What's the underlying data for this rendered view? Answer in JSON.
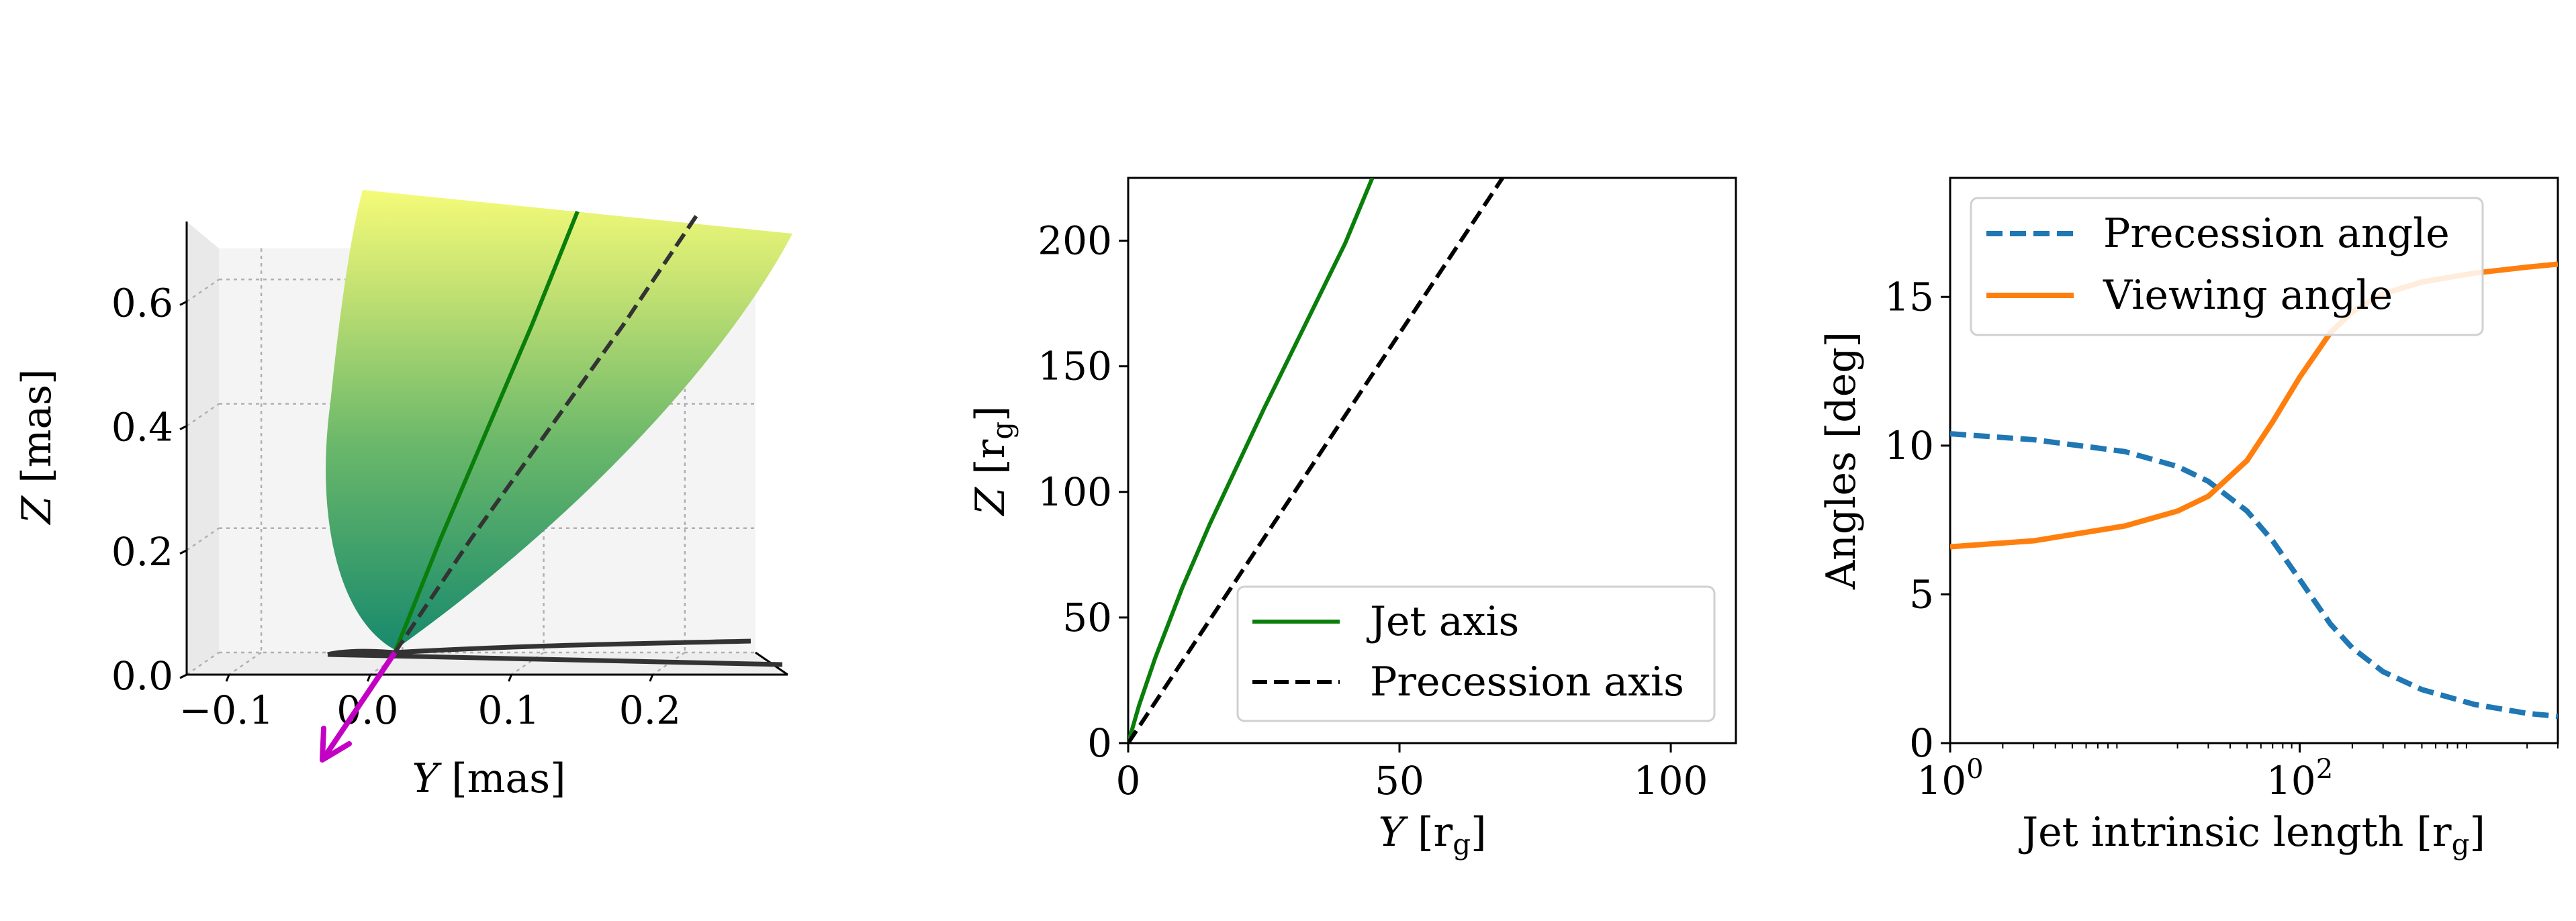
{
  "colors": {
    "jet_axis": "#0a7e0a",
    "precession_axis": "#000000",
    "precession_angle": "#1f77b4",
    "viewing_angle": "#ff7f0e",
    "view_arrow": "#c400c4",
    "surface_top": "#f5fb78",
    "surface_bottom": "#188a6c",
    "helix": "#333333"
  },
  "chart_data": [
    {
      "type": "surface3d",
      "colormap": "summer",
      "xlabel_var": "Y",
      "xlabel_unit": "[mas]",
      "ylabel_var": "Z",
      "ylabel_unit": "[mas]",
      "xlim": [
        -0.13,
        0.25
      ],
      "ylim": [
        0.0,
        0.65
      ],
      "xticks": [
        "−0.1",
        "0.0",
        "0.1",
        "0.2"
      ],
      "xtick_values": [
        -0.1,
        0.0,
        0.1,
        0.2
      ],
      "yticks": [
        "0.0",
        "0.2",
        "0.4",
        "0.6"
      ],
      "ytick_values": [
        0.0,
        0.2,
        0.4,
        0.6
      ],
      "grid": true,
      "series": [
        {
          "role": "jet-axis",
          "y": [
            0.0,
            0.03,
            0.06,
            0.09,
            0.12
          ],
          "z": [
            0.0,
            0.17,
            0.33,
            0.49,
            0.66
          ]
        },
        {
          "role": "precession-axis",
          "y": [
            0.0,
            0.05,
            0.1,
            0.15,
            0.2
          ],
          "z": [
            0.0,
            0.17,
            0.33,
            0.49,
            0.66
          ]
        }
      ]
    },
    {
      "type": "line",
      "xlabel_var": "Y",
      "xlabel_unit": "[r",
      "xlabel_sub": "g",
      "xlabel_close": "]",
      "ylabel_var": "Z",
      "ylabel_unit": "[r",
      "ylabel_sub": "g",
      "ylabel_close": "]",
      "xlim": [
        0,
        112
      ],
      "ylim": [
        0,
        225
      ],
      "xticks": [
        "0",
        "50",
        "100"
      ],
      "xtick_values": [
        0,
        50,
        100
      ],
      "yticks": [
        "0",
        "50",
        "100",
        "150",
        "200"
      ],
      "ytick_values": [
        0,
        50,
        100,
        150,
        200
      ],
      "legend_position": "lower-right",
      "series": [
        {
          "name": "Jet axis",
          "style": "solid",
          "x": [
            0,
            2,
            5,
            10,
            15,
            20,
            25,
            30,
            35,
            40,
            45
          ],
          "y": [
            0,
            15,
            34,
            62,
            87,
            110,
            133,
            155,
            177,
            199,
            225
          ]
        },
        {
          "name": "Precession axis",
          "style": "dashed",
          "x": [
            0,
            69
          ],
          "y": [
            0,
            225
          ]
        }
      ]
    },
    {
      "type": "line",
      "xscale": "log",
      "xlabel": "Jet intrinsic length [r",
      "xlabel_sub": "g",
      "xlabel_close": "]",
      "ylabel": "Angles [deg]",
      "xlim": [
        1,
        3000
      ],
      "ylim": [
        0,
        19
      ],
      "xtick_values": [
        1,
        100
      ],
      "yticks": [
        "0",
        "5",
        "10",
        "15"
      ],
      "ytick_values": [
        0,
        5,
        10,
        15
      ],
      "legend_position": "upper-left",
      "series": [
        {
          "name": "Precession angle",
          "style": "dashed",
          "x": [
            1,
            3,
            10,
            20,
            30,
            50,
            70,
            100,
            150,
            200,
            300,
            500,
            1000,
            2000,
            3000
          ],
          "y": [
            10.4,
            10.2,
            9.8,
            9.3,
            8.8,
            7.8,
            6.8,
            5.5,
            4.0,
            3.2,
            2.4,
            1.8,
            1.3,
            1.0,
            0.9
          ]
        },
        {
          "name": "Viewing angle",
          "style": "solid",
          "x": [
            1,
            3,
            10,
            20,
            30,
            50,
            70,
            100,
            150,
            200,
            300,
            500,
            1000,
            2000,
            3000
          ],
          "y": [
            6.6,
            6.8,
            7.3,
            7.8,
            8.3,
            9.5,
            10.8,
            12.3,
            13.8,
            14.5,
            15.1,
            15.5,
            15.8,
            16.0,
            16.1
          ]
        }
      ]
    }
  ]
}
